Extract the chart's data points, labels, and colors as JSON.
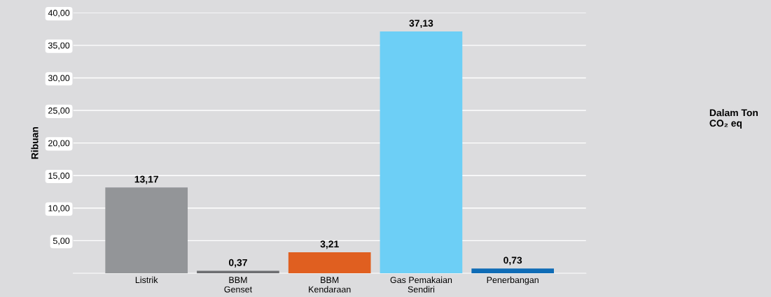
{
  "chart_data": {
    "type": "bar",
    "ylabel": "Ribuan",
    "categories": [
      "Listrik",
      "BBM\nGenset",
      "BBM\nKendaraan",
      "Gas Pemakaian\nSendiri",
      "Penerbangan"
    ],
    "values": [
      13.17,
      0.37,
      3.21,
      37.13,
      0.73
    ],
    "colors": [
      "#939598",
      "#6d6e71",
      "#e05f20",
      "#6dcff6",
      "#0f6cb6"
    ],
    "value_labels": [
      "13,17",
      "0,37",
      "3,21",
      "37,13",
      "0,73"
    ],
    "ylim": [
      0,
      40
    ],
    "yticks": [
      {
        "value": 5,
        "label": "5,00"
      },
      {
        "value": 10,
        "label": "10,00"
      },
      {
        "value": 15,
        "label": "15,00"
      },
      {
        "value": 20,
        "label": "20,00"
      },
      {
        "value": 25,
        "label": "25,00"
      },
      {
        "value": 30,
        "label": "30,00"
      },
      {
        "value": 35,
        "label": "35,00"
      },
      {
        "value": 40,
        "label": "40,00"
      }
    ],
    "grid": "y",
    "annotations": [
      "Dalam Ton CO₂ eq"
    ]
  }
}
